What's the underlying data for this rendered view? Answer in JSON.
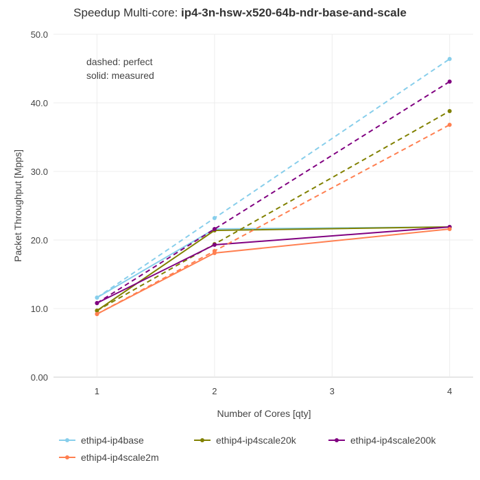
{
  "chart_data": {
    "type": "line",
    "title_prefix": "Speedup Multi-core: ",
    "title_bold": "ip4-3n-hsw-x520-64b-ndr-base-and-scale",
    "xlabel": "Number of Cores [qty]",
    "ylabel": "Packet Throughput [Mpps]",
    "x_ticks": [
      1,
      2,
      3,
      4
    ],
    "y_ticks": [
      "0.00",
      "10.0",
      "20.0",
      "30.0",
      "40.0",
      "50.0"
    ],
    "y_tick_values": [
      0,
      10,
      20,
      30,
      40,
      50
    ],
    "xlim": [
      0.63,
      4.2
    ],
    "ylim": [
      0,
      50
    ],
    "grid": true,
    "legend_position": "bottom",
    "annotation_lines": [
      "dashed: perfect",
      "solid: measured"
    ],
    "series": [
      {
        "name": "ethip4-ip4base",
        "color": "#87ceeb",
        "x": [
          1,
          2,
          4
        ],
        "measured": [
          11.6,
          21.6,
          21.9
        ],
        "perfect": [
          11.6,
          23.2,
          46.4
        ]
      },
      {
        "name": "ethip4-ip4scale20k",
        "color": "#808000",
        "x": [
          1,
          2,
          4
        ],
        "measured": [
          9.7,
          21.4,
          21.9
        ],
        "perfect": [
          9.7,
          19.4,
          38.8
        ]
      },
      {
        "name": "ethip4-ip4scale200k",
        "color": "#800080",
        "x": [
          1,
          2,
          4
        ],
        "measured": [
          10.8,
          19.3,
          21.9
        ],
        "perfect": [
          10.8,
          21.6,
          43.1
        ]
      },
      {
        "name": "ethip4-ip4scale2m",
        "color": "#ff7f50",
        "x": [
          1,
          2,
          4
        ],
        "measured": [
          9.2,
          18.1,
          21.6
        ],
        "perfect": [
          9.2,
          18.4,
          36.8
        ]
      }
    ]
  }
}
